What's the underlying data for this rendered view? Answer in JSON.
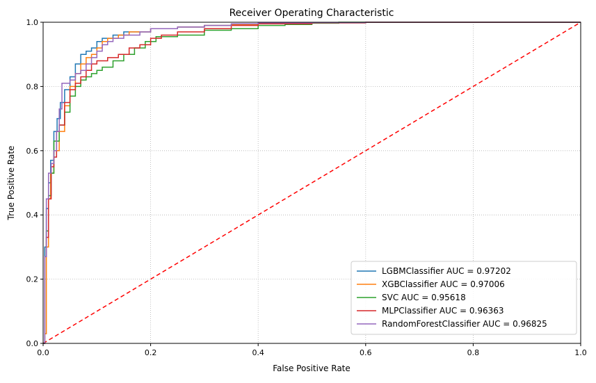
{
  "chart_data": {
    "type": "line",
    "title": "Receiver Operating Characteristic",
    "xlabel": "False Positive Rate",
    "ylabel": "True Positive Rate",
    "xlim": [
      0,
      1
    ],
    "ylim": [
      0,
      1
    ],
    "x_ticks": [
      "0.0",
      "0.2",
      "0.4",
      "0.6",
      "0.8",
      "1.0"
    ],
    "y_ticks": [
      "0.0",
      "0.2",
      "0.4",
      "0.6",
      "0.8",
      "1.0"
    ],
    "grid": true,
    "legend_position": "lower-right",
    "series": [
      {
        "name": "LGBMClassifier AUC = 0.97202",
        "color": "#1f77b4",
        "x": [
          0,
          0.003,
          0.006,
          0.01,
          0.014,
          0.02,
          0.026,
          0.032,
          0.04,
          0.05,
          0.06,
          0.07,
          0.08,
          0.09,
          0.1,
          0.11,
          0.13,
          0.15,
          0.2,
          0.25,
          0.3,
          0.35,
          0.4,
          0.5,
          0.6,
          0.7
        ],
        "y": [
          0,
          0.3,
          0.42,
          0.5,
          0.57,
          0.66,
          0.7,
          0.75,
          0.79,
          0.83,
          0.87,
          0.9,
          0.91,
          0.92,
          0.94,
          0.95,
          0.96,
          0.97,
          0.98,
          0.985,
          0.99,
          0.993,
          0.996,
          0.998,
          1.0,
          1.0
        ]
      },
      {
        "name": "XGBClassifier AUC = 0.97006",
        "color": "#ff7f0e",
        "x": [
          0,
          0.003,
          0.006,
          0.01,
          0.014,
          0.02,
          0.03,
          0.04,
          0.05,
          0.06,
          0.07,
          0.08,
          0.09,
          0.1,
          0.11,
          0.12,
          0.14,
          0.16,
          0.2,
          0.25,
          0.3,
          0.35,
          0.4,
          0.5,
          0.6,
          0.7
        ],
        "y": [
          0,
          0.03,
          0.3,
          0.45,
          0.53,
          0.6,
          0.66,
          0.74,
          0.8,
          0.84,
          0.87,
          0.89,
          0.9,
          0.92,
          0.94,
          0.95,
          0.96,
          0.97,
          0.98,
          0.985,
          0.99,
          0.993,
          0.996,
          0.998,
          1.0,
          1.0
        ]
      },
      {
        "name": "SVC AUC = 0.95618",
        "color": "#2ca02c",
        "x": [
          0,
          0.003,
          0.006,
          0.01,
          0.015,
          0.02,
          0.03,
          0.04,
          0.05,
          0.06,
          0.07,
          0.08,
          0.09,
          0.1,
          0.11,
          0.13,
          0.15,
          0.17,
          0.19,
          0.21,
          0.25,
          0.3,
          0.35,
          0.4,
          0.45,
          0.5,
          0.55
        ],
        "y": [
          0,
          0.27,
          0.35,
          0.46,
          0.53,
          0.63,
          0.68,
          0.72,
          0.77,
          0.8,
          0.82,
          0.83,
          0.84,
          0.85,
          0.86,
          0.88,
          0.9,
          0.92,
          0.94,
          0.955,
          0.96,
          0.975,
          0.98,
          0.99,
          0.993,
          0.997,
          1.0
        ]
      },
      {
        "name": "MLPClassifier AUC = 0.96363",
        "color": "#d62728",
        "x": [
          0,
          0.003,
          0.006,
          0.01,
          0.015,
          0.02,
          0.025,
          0.03,
          0.04,
          0.05,
          0.06,
          0.07,
          0.08,
          0.09,
          0.1,
          0.12,
          0.14,
          0.16,
          0.18,
          0.2,
          0.22,
          0.25,
          0.3,
          0.35,
          0.4,
          0.5,
          0.6
        ],
        "y": [
          0,
          0.27,
          0.33,
          0.45,
          0.55,
          0.58,
          0.66,
          0.68,
          0.75,
          0.79,
          0.81,
          0.83,
          0.85,
          0.87,
          0.88,
          0.89,
          0.9,
          0.92,
          0.93,
          0.95,
          0.96,
          0.97,
          0.98,
          0.99,
          0.995,
          0.998,
          1.0
        ]
      },
      {
        "name": "RandomForestClassifier AUC = 0.96825",
        "color": "#9467bd",
        "x": [
          0,
          0.003,
          0.006,
          0.01,
          0.015,
          0.02,
          0.025,
          0.03,
          0.035,
          0.05,
          0.06,
          0.07,
          0.08,
          0.09,
          0.1,
          0.11,
          0.12,
          0.13,
          0.15,
          0.18,
          0.2,
          0.25,
          0.3,
          0.35,
          0.4,
          0.5,
          0.6
        ],
        "y": [
          0,
          0.27,
          0.45,
          0.53,
          0.56,
          0.6,
          0.66,
          0.73,
          0.81,
          0.82,
          0.84,
          0.85,
          0.87,
          0.89,
          0.91,
          0.93,
          0.94,
          0.95,
          0.96,
          0.97,
          0.98,
          0.985,
          0.99,
          0.995,
          0.998,
          0.999,
          1.0
        ]
      }
    ],
    "reference_line": {
      "color": "#ff0000",
      "dash": "dashed",
      "x": [
        0,
        1
      ],
      "y": [
        0,
        1
      ]
    }
  }
}
